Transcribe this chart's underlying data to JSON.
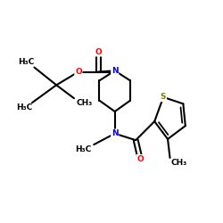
{
  "bg_color": "#ffffff",
  "atom_colors": {
    "C": "#000000",
    "N": "#0000ff",
    "O": "#ff0000",
    "S": "#808000"
  },
  "bond_color": "#000000",
  "bond_width": 1.5,
  "figsize": [
    2.5,
    2.5
  ],
  "dpi": 100,
  "xlim": [
    0,
    10
  ],
  "ylim": [
    0,
    10
  ],
  "font_size": 6.5
}
